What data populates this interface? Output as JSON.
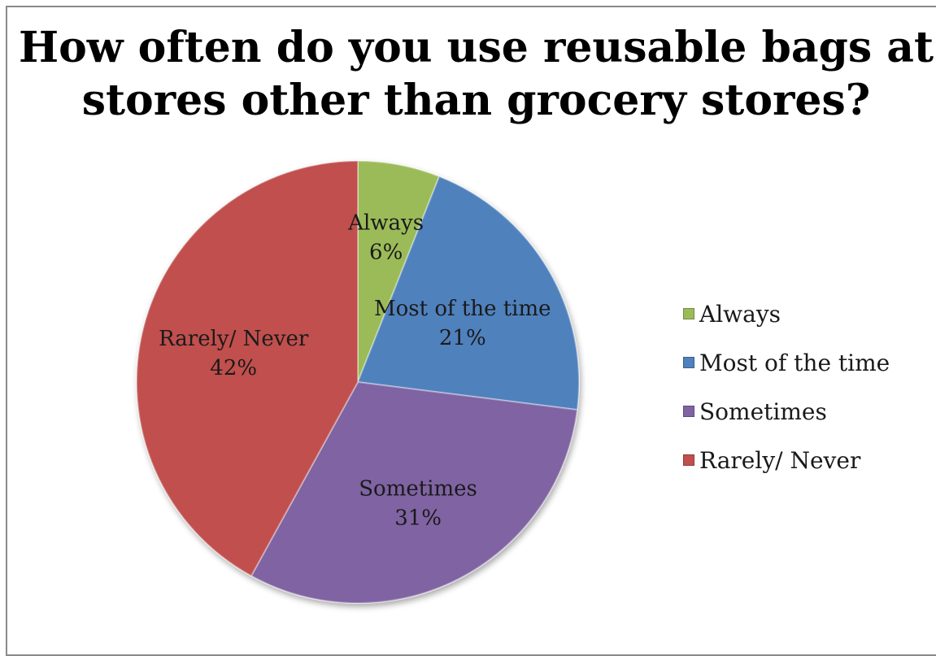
{
  "chart_data": {
    "type": "pie",
    "title": "How often do you use reusable bags at stores other than grocery stores?",
    "legend_position": "right",
    "categories": [
      "Always",
      "Most of the time",
      "Sometimes",
      "Rarely/ Never"
    ],
    "values": [
      6,
      21,
      31,
      42
    ],
    "data_labels": [
      "6%",
      "21%",
      "31%",
      "42%"
    ],
    "colors": [
      "#9BBB59",
      "#4F81BD",
      "#8064A2",
      "#C0504D"
    ],
    "start_angle_deg": 0,
    "direction": "clockwise"
  }
}
